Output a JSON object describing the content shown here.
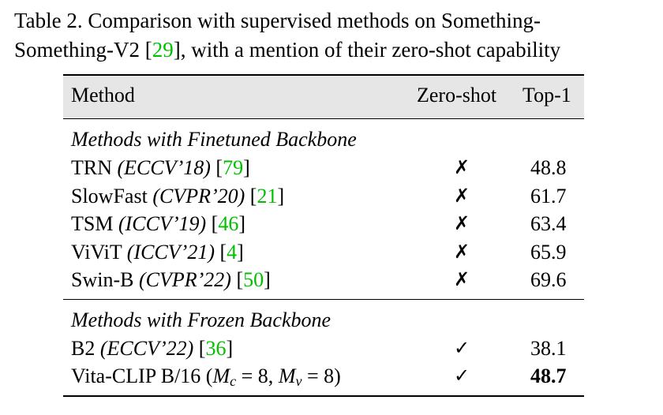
{
  "caption": {
    "line1_prefix": "Table 2.  Comparison with supervised methods on Something-",
    "line2_prefix": "Something-V2 [",
    "line2_cite": "29",
    "line2_suffix": "], with a mention of their zero-shot capability"
  },
  "table": {
    "headers": {
      "method": "Method",
      "zero_shot": "Zero-shot",
      "top1": "Top-1"
    },
    "groups": [
      {
        "title": "Methods with Finetuned Backbone",
        "rows": [
          {
            "name": "TRN ",
            "venue": "(ECCV’18)",
            "cite": "79",
            "zero_shot": "✗",
            "top1": "48.8"
          },
          {
            "name": "SlowFast ",
            "venue": "(CVPR’20)",
            "cite": "21",
            "zero_shot": "✗",
            "top1": "61.7"
          },
          {
            "name": "TSM ",
            "venue": "(ICCV’19)",
            "cite": "46",
            "zero_shot": "✗",
            "top1": "63.4"
          },
          {
            "name": "ViViT ",
            "venue": "(ICCV’21)",
            "cite": "4",
            "zero_shot": "✗",
            "top1": "65.9"
          },
          {
            "name": "Swin-B ",
            "venue": "(CVPR’22)",
            "cite": "50",
            "zero_shot": "✗",
            "top1": "69.6"
          }
        ]
      },
      {
        "title": "Methods with Frozen Backbone",
        "rows": [
          {
            "name": "B2 ",
            "venue": "(ECCV’22)",
            "cite": "36",
            "zero_shot": "✓",
            "top1": "38.1"
          }
        ]
      }
    ],
    "vita_row": {
      "name": "Vita-CLIP B/16 (",
      "m": "M",
      "c_sub": "c",
      "eq1": " = 8, ",
      "v_sub": "v",
      "eq2": " = 8)",
      "zero_shot": "✓",
      "top1": "48.7"
    }
  },
  "colors": {
    "citation": "#00c000",
    "header_bg": "#e6e6e6"
  }
}
